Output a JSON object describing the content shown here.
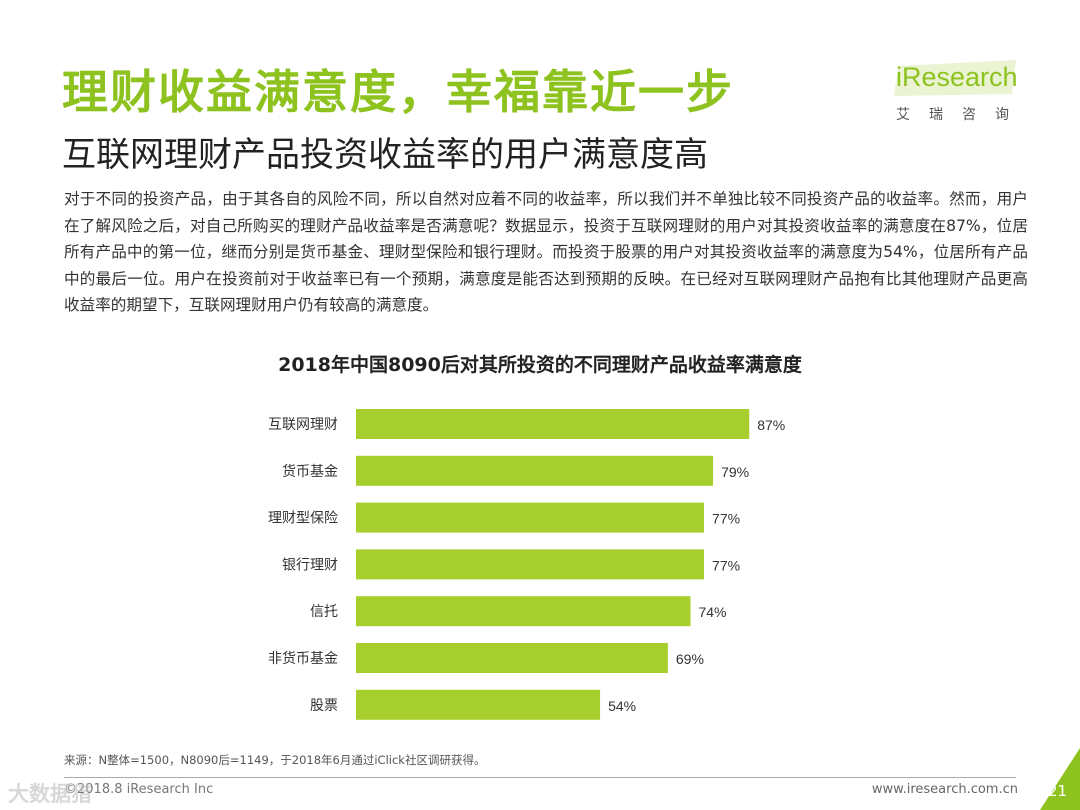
{
  "slide": {
    "title": "理财收益满意度，幸福靠近一步",
    "subtitle": "互联网理财产品投资收益率的用户满意度高",
    "body": "对于不同的投资产品，由于其各自的风险不同，所以自然对应着不同的收益率，所以我们并不单独比较不同投资产品的收益率。然而，用户在了解风险之后，对自己所购买的理财产品收益率是否满意呢？数据显示，投资于互联网理财的用户对其投资收益率的满意度在87%，位居所有产品中的第一位，继而分别是货币基金、理财型保险和银行理财。而投资于股票的用户对其投资收益率的满意度为54%，位居所有产品中的最后一位。用户在投资前对于收益率已有一个预期，满意度是能否达到预期的反映。在已经对互联网理财产品抱有比其他理财产品更高收益率的期望下，互联网理财用户仍有较高的满意度。"
  },
  "logo": {
    "text": "iResearch",
    "sub": "艾瑞咨询"
  },
  "footer": {
    "note": "来源：N整体=1500，N8090后=1149，于2018年6月通过iClick社区调研获得。",
    "copyright": "©2018.8 iResearch Inc",
    "site": "www.iresearch.com.cn",
    "page": "21",
    "watermark": "大数据猎"
  },
  "colors": {
    "accent": "#8dc21f",
    "bar": "#a6cf2e"
  },
  "chart_data": {
    "type": "bar",
    "orientation": "horizontal",
    "title": "2018年中国8090后对其所投资的不同理财产品收益率满意度",
    "categories": [
      "互联网理财",
      "货币基金",
      "理财型保险",
      "银行理财",
      "信托",
      "非货币基金",
      "股票"
    ],
    "values": [
      87,
      79,
      77,
      77,
      74,
      69,
      54
    ],
    "labels": [
      "87%",
      "79%",
      "77%",
      "77%",
      "74%",
      "69%",
      "54%"
    ],
    "unit": "%",
    "xlim": [
      0,
      100
    ],
    "grid": false,
    "legend": "none"
  }
}
